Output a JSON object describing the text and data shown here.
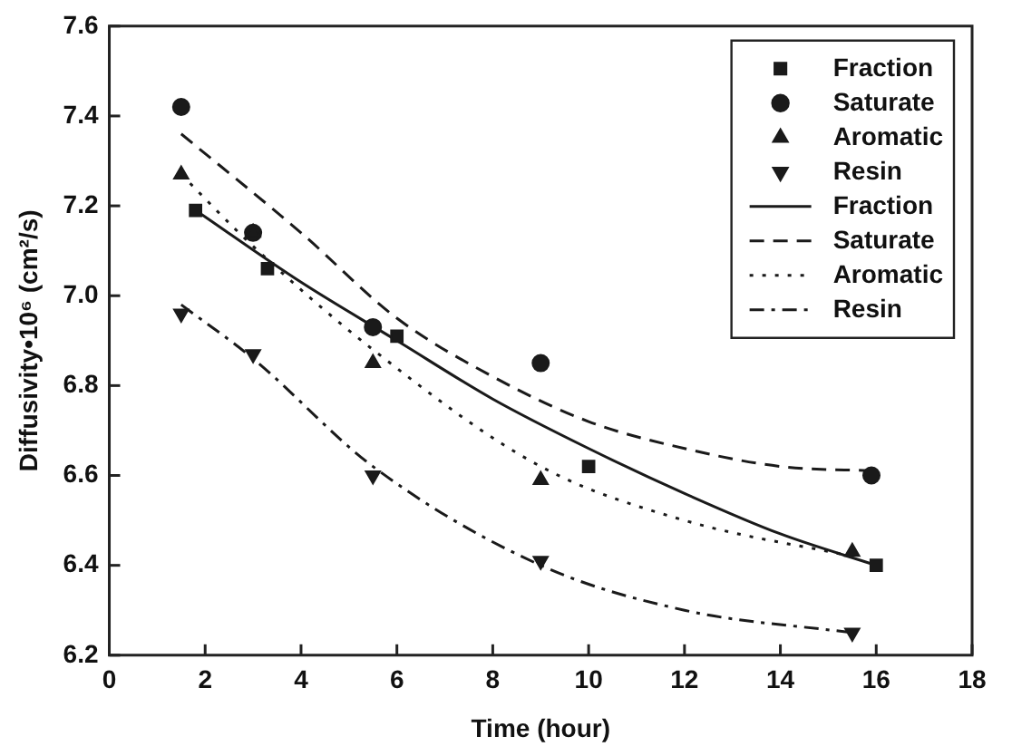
{
  "chart_data": {
    "type": "scatter",
    "xlabel": "Time (hour)",
    "ylabel": "Diffusivity•10⁶ (cm²/s)",
    "xlim": [
      0,
      18
    ],
    "xticks": [
      0,
      2,
      4,
      6,
      8,
      10,
      12,
      14,
      16,
      18
    ],
    "ylim": [
      6.2,
      7.6
    ],
    "yticks": [
      6.2,
      6.4,
      6.6,
      6.8,
      {
        "value": 7,
        "label": "7.0"
      },
      7.2,
      7.4,
      7.6
    ],
    "grid": false,
    "legend": "top right",
    "series": [
      {
        "name": "Fraction",
        "marker": "square",
        "color": "#1a1a1a",
        "x": [
          1.8,
          3.3,
          6,
          10,
          16
        ],
        "values": [
          7.19,
          7.06,
          6.91,
          6.62,
          6.4
        ]
      },
      {
        "name": "Saturate",
        "marker": "circle",
        "color": "#1a1a1a",
        "x": [
          1.5,
          3,
          5.5,
          9,
          15.9
        ],
        "values": [
          7.42,
          7.14,
          6.93,
          6.85,
          6.6
        ]
      },
      {
        "name": "Aromatic",
        "marker": "triangle",
        "color": "#1a1a1a",
        "x": [
          1.5,
          3,
          5.5,
          9,
          15.5
        ],
        "values": [
          7.27,
          7.14,
          6.85,
          6.59,
          6.43
        ]
      },
      {
        "name": "Resin",
        "marker": "triangle-down",
        "color": "#1a1a1a",
        "x": [
          1.5,
          3,
          5.5,
          9,
          15.5
        ],
        "values": [
          6.96,
          6.87,
          6.6,
          6.41,
          6.25
        ]
      },
      {
        "name": "Fraction",
        "type": "line",
        "line_style": "solid",
        "color": "#1a1a1a",
        "x": [
          1.8,
          4,
          6,
          8,
          10,
          12,
          14,
          16
        ],
        "values": [
          7.19,
          7.03,
          6.9,
          6.77,
          6.66,
          6.56,
          6.47,
          6.4
        ]
      },
      {
        "name": "Saturate",
        "type": "line",
        "line_style": "dashed",
        "color": "#1a1a1a",
        "x": [
          1.5,
          4,
          6,
          8,
          10,
          12,
          14,
          16
        ],
        "values": [
          7.36,
          7.14,
          6.95,
          6.82,
          6.72,
          6.66,
          6.62,
          6.61
        ]
      },
      {
        "name": "Aromatic",
        "type": "line",
        "line_style": "dotted",
        "color": "#1a1a1a",
        "x": [
          1.5,
          3,
          5.5,
          9,
          12,
          15.5
        ],
        "values": [
          7.27,
          7.11,
          6.88,
          6.62,
          6.5,
          6.42
        ]
      },
      {
        "name": "Resin",
        "type": "line",
        "line_style": "dashdot",
        "color": "#1a1a1a",
        "x": [
          1.5,
          3,
          5.5,
          9,
          12,
          15.5
        ],
        "values": [
          6.98,
          6.86,
          6.62,
          6.4,
          6.3,
          6.25
        ]
      }
    ]
  }
}
